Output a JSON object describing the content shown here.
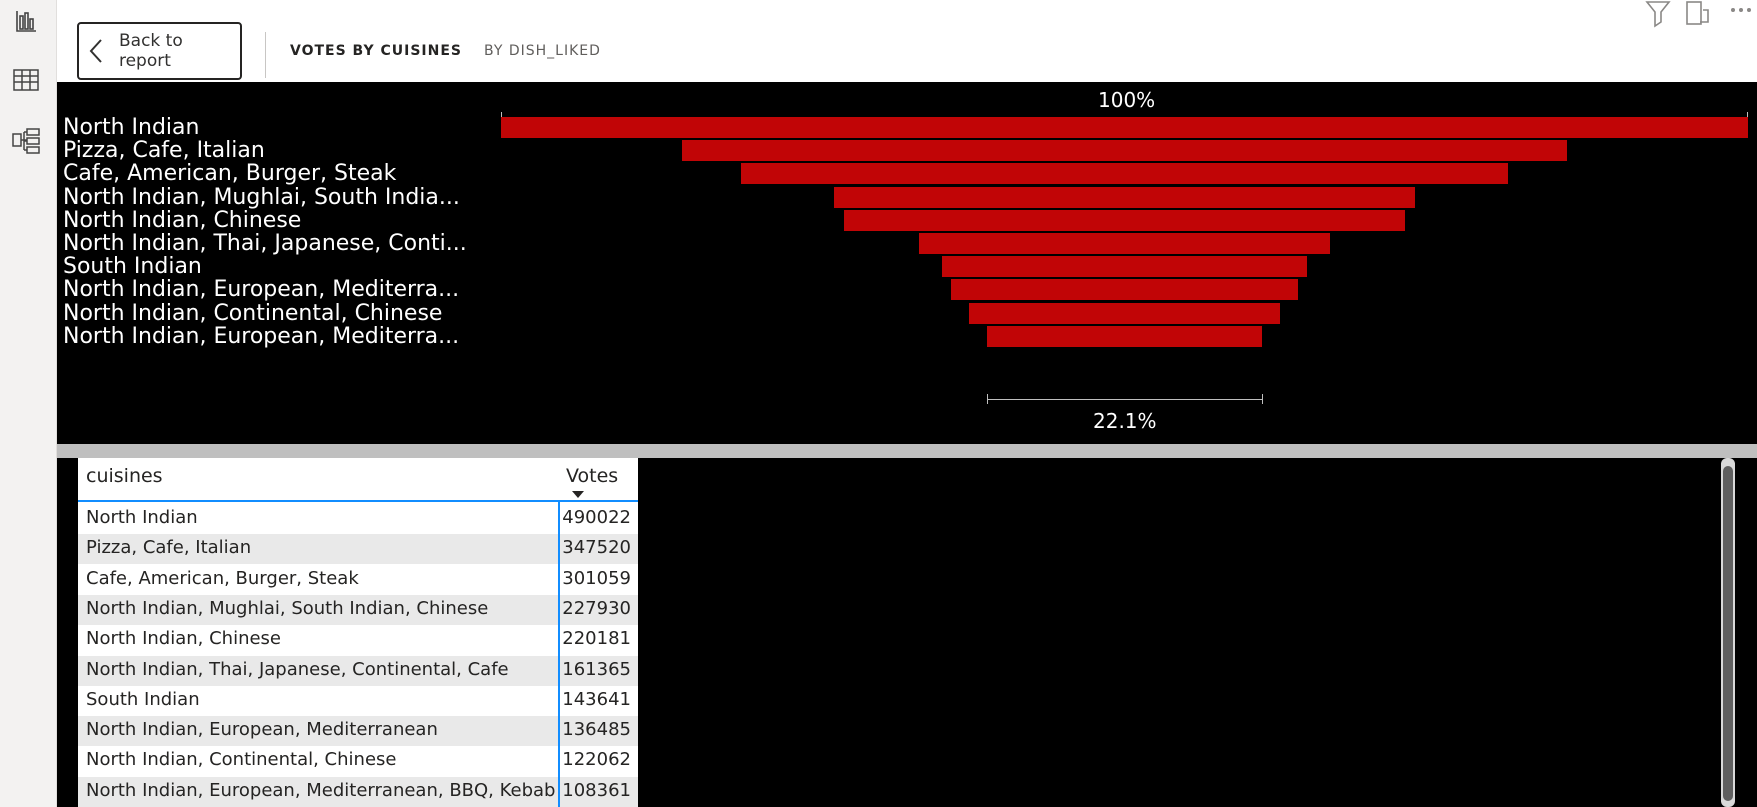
{
  "header": {
    "back_label": "Back to report",
    "tabs": [
      {
        "label": "VOTES BY CUISINES",
        "active": true
      },
      {
        "label": "BY DISH_LIKED",
        "active": false
      }
    ]
  },
  "rail": {
    "icons": [
      "bar-chart-icon",
      "table-icon",
      "model-icon"
    ]
  },
  "top_icons": [
    "filter-icon",
    "focus-mode-icon",
    "more-options-icon"
  ],
  "colors": {
    "bar": "#c10506",
    "background": "#000000",
    "table_accent": "#118dff"
  },
  "chart_data": {
    "type": "bar",
    "subtype": "funnel",
    "top_label": "100%",
    "bottom_label": "22.1%",
    "categories": [
      "North Indian",
      "Pizza, Cafe, Italian",
      "Cafe, American, Burger, Steak",
      "North Indian, Mughlai, South India...",
      "North Indian, Chinese",
      "North Indian, Thai, Japanese, Conti...",
      "South Indian",
      "North Indian, European, Mediterra...",
      "North Indian, Continental, Chinese",
      "North Indian, European, Mediterra..."
    ],
    "values": [
      490022,
      347520,
      301059,
      227930,
      220181,
      161365,
      143641,
      136485,
      122062,
      108361
    ]
  },
  "table": {
    "columns": [
      "cuisines",
      "Votes"
    ],
    "rows": [
      {
        "cuisines": "North Indian",
        "votes": "490022"
      },
      {
        "cuisines": "Pizza, Cafe, Italian",
        "votes": "347520"
      },
      {
        "cuisines": "Cafe, American, Burger, Steak",
        "votes": "301059"
      },
      {
        "cuisines": "North Indian, Mughlai, South Indian, Chinese",
        "votes": "227930"
      },
      {
        "cuisines": "North Indian, Chinese",
        "votes": "220181"
      },
      {
        "cuisines": "North Indian, Thai, Japanese, Continental, Cafe",
        "votes": "161365"
      },
      {
        "cuisines": "South Indian",
        "votes": "143641"
      },
      {
        "cuisines": "North Indian, European, Mediterranean",
        "votes": "136485"
      },
      {
        "cuisines": "North Indian, Continental, Chinese",
        "votes": "122062"
      },
      {
        "cuisines": "North Indian, European, Mediterranean, BBQ, Kebab",
        "votes": "108361"
      }
    ]
  }
}
